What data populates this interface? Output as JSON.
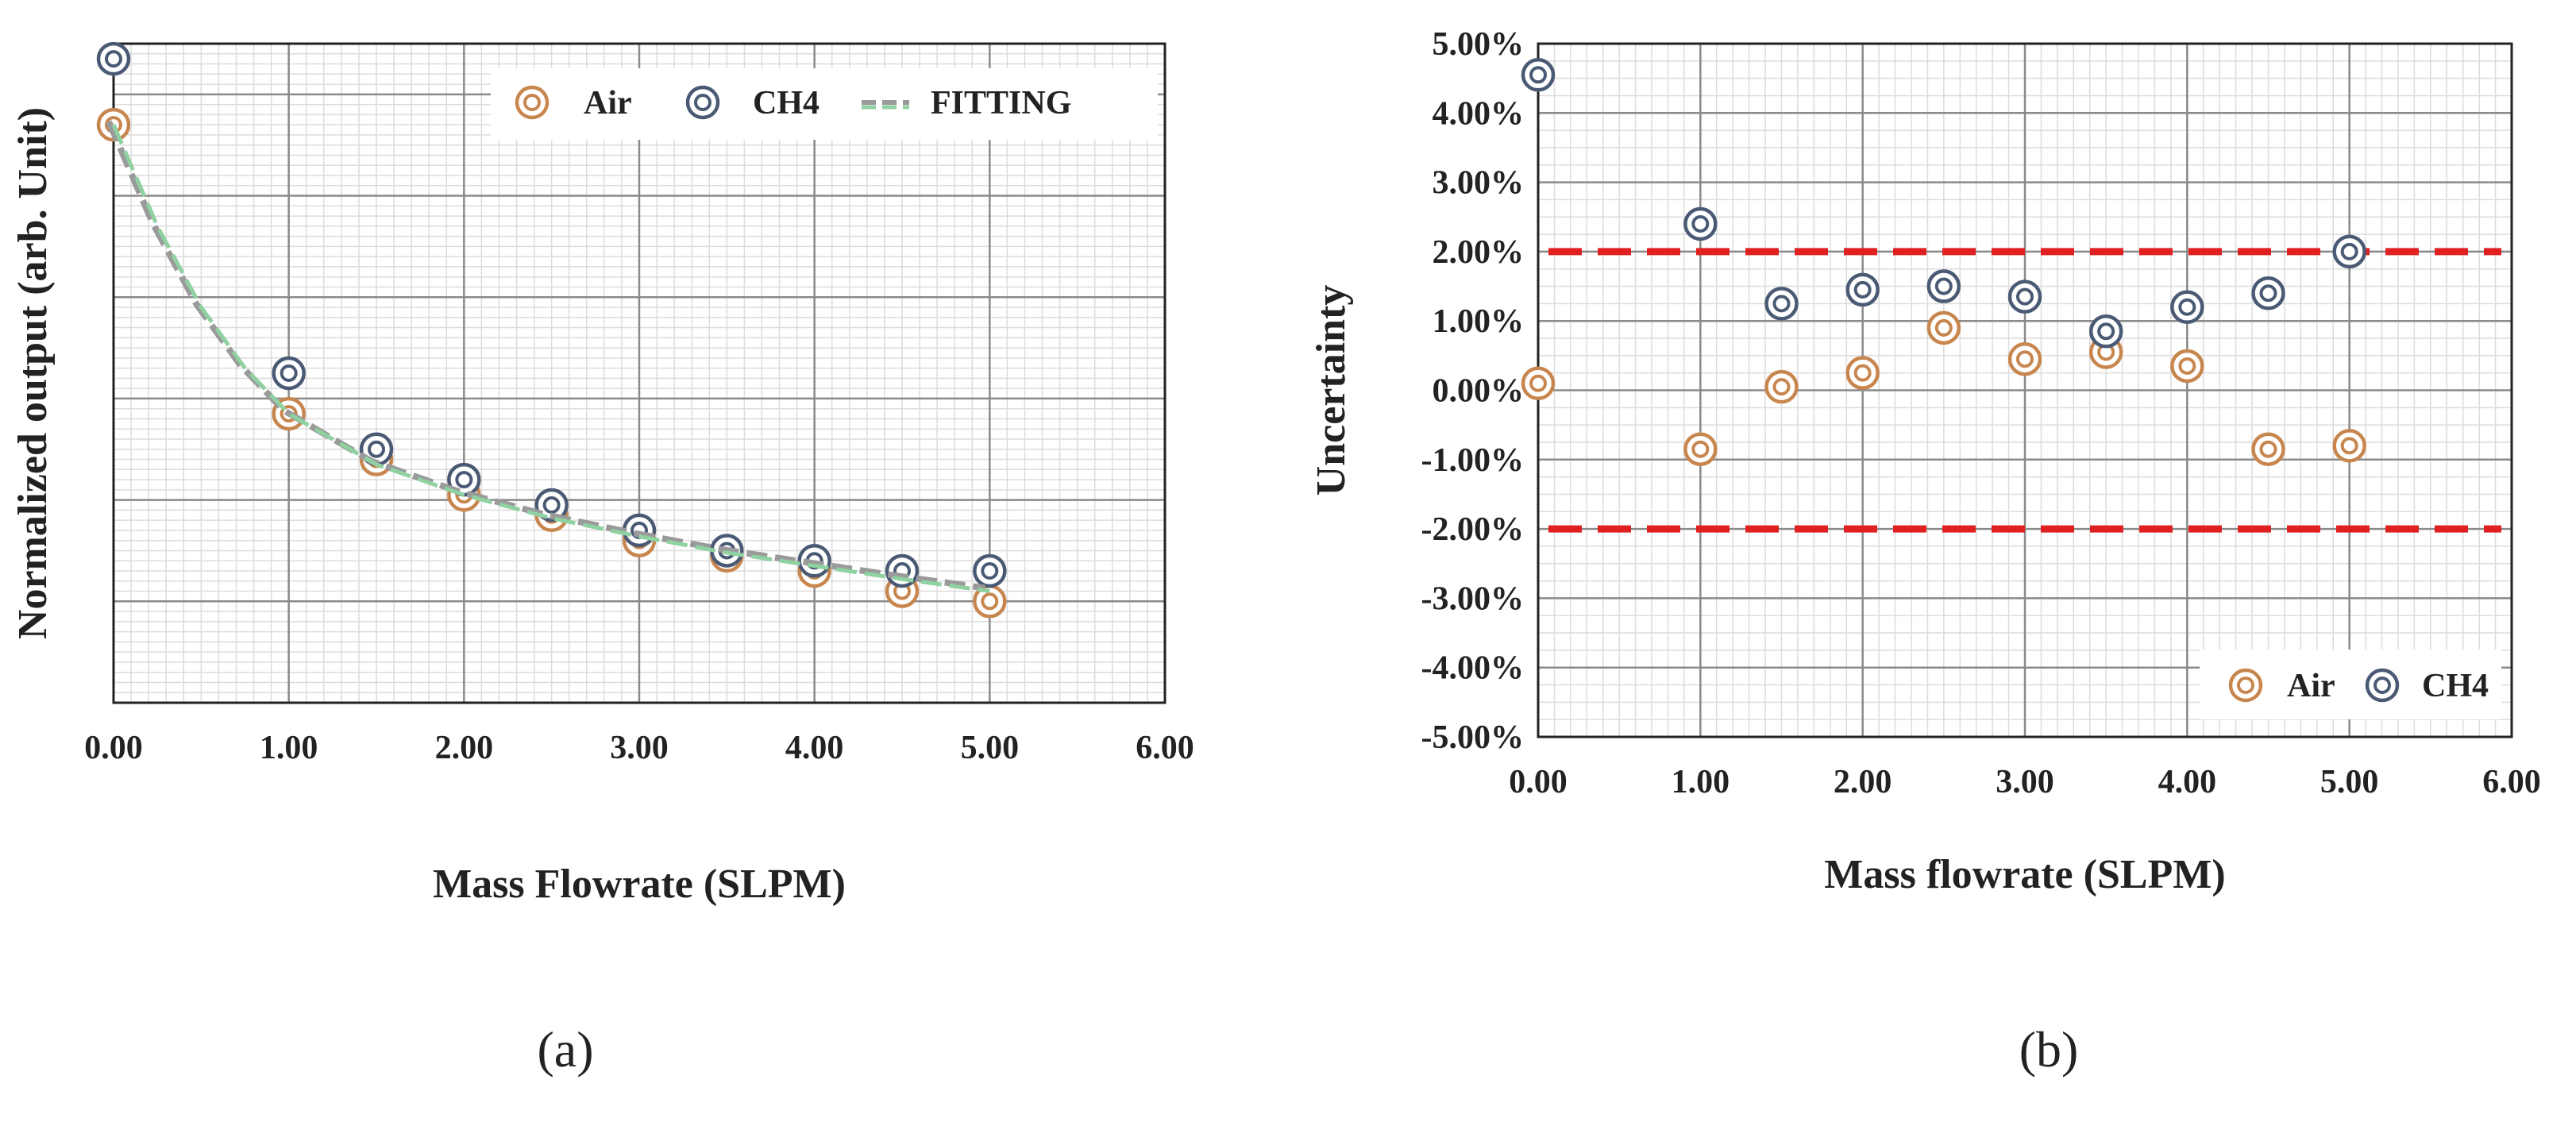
{
  "colors": {
    "air": "#c8864f",
    "ch4": "#4a5a74",
    "fitting": "#8fd1a0",
    "limits": "#e02020",
    "grid_major": "#8a8a8a",
    "grid_minor": "#dcdcdc",
    "frame": "#222222"
  },
  "panels": [
    {
      "label": "(a)"
    },
    {
      "label": "(b)"
    }
  ],
  "chart_data": [
    {
      "type": "scatter",
      "title": "",
      "xlabel": "Mass Flowrate (SLPM)",
      "ylabel": "Normalized output (arb. Unit)",
      "xlim": [
        0,
        6
      ],
      "ylim": [
        0,
        6.5
      ],
      "x_ticks": [
        "0.00",
        "1.00",
        "2.00",
        "3.00",
        "4.00",
        "5.00",
        "6.00"
      ],
      "y_ticks_labeled": false,
      "grid": true,
      "legend_position": "top-right",
      "series": [
        {
          "name": "Air",
          "marker": "double-circle",
          "x": [
            0,
            1,
            1.5,
            2,
            2.5,
            3,
            3.5,
            4,
            4.5,
            5
          ],
          "y": [
            5.7,
            2.85,
            2.4,
            2.05,
            1.85,
            1.6,
            1.45,
            1.3,
            1.1,
            1.0
          ]
        },
        {
          "name": "CH4",
          "marker": "double-circle",
          "x": [
            0,
            1,
            1.5,
            2,
            2.5,
            3,
            3.5,
            4,
            4.5,
            5
          ],
          "y": [
            6.35,
            3.25,
            2.5,
            2.2,
            1.95,
            1.7,
            1.5,
            1.4,
            1.3,
            1.3
          ]
        },
        {
          "name": "FITTING",
          "style": "dashed-line",
          "x": [
            0,
            0.25,
            0.5,
            0.75,
            1,
            1.5,
            2,
            2.5,
            3,
            3.5,
            4,
            4.5,
            5
          ],
          "y": [
            5.7,
            4.7,
            3.9,
            3.3,
            2.85,
            2.35,
            2.05,
            1.82,
            1.64,
            1.48,
            1.35,
            1.22,
            1.1
          ]
        }
      ]
    },
    {
      "type": "scatter",
      "title": "",
      "xlabel": "Mass flowrate (SLPM)",
      "ylabel": "Uncertainty",
      "xlim": [
        0,
        6
      ],
      "ylim": [
        -5,
        5
      ],
      "x_ticks": [
        "0.00",
        "1.00",
        "2.00",
        "3.00",
        "4.00",
        "5.00",
        "6.00"
      ],
      "y_ticks": [
        "5.00%",
        "4.00%",
        "3.00%",
        "2.00%",
        "1.00%",
        "0.00%",
        "-1.00%",
        "-2.00%",
        "-3.00%",
        "-4.00%",
        "-5.00%"
      ],
      "grid": true,
      "legend_position": "bottom-right",
      "reference_lines_percent": [
        2.0,
        -2.0
      ],
      "series": [
        {
          "name": "Air",
          "marker": "double-circle",
          "x": [
            0,
            1,
            1.5,
            2,
            2.5,
            3,
            3.5,
            4,
            4.5,
            5
          ],
          "y": [
            0.1,
            -0.85,
            0.05,
            0.25,
            0.9,
            0.45,
            0.55,
            0.35,
            -0.85,
            -0.8
          ]
        },
        {
          "name": "CH4",
          "marker": "double-circle",
          "x": [
            0,
            1,
            1.5,
            2,
            2.5,
            3,
            3.5,
            4,
            4.5,
            5
          ],
          "y": [
            4.55,
            2.4,
            1.25,
            1.45,
            1.5,
            1.35,
            0.85,
            1.2,
            1.4,
            2.0
          ]
        }
      ]
    }
  ]
}
